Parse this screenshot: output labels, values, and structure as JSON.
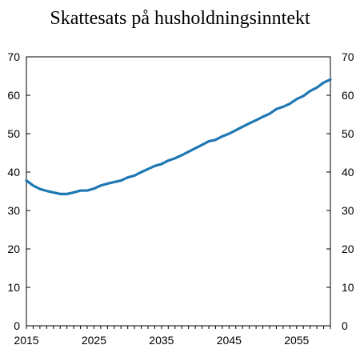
{
  "chart_data": {
    "type": "line",
    "title": "Skattesats på husholdningsinntekt",
    "xlabel": "",
    "ylabel": "",
    "xlim": [
      2015,
      2060
    ],
    "ylim": [
      0,
      70
    ],
    "x_ticks": [
      "2015",
      "2025",
      "2035",
      "2045",
      "2055"
    ],
    "y_ticks_left": [
      "0",
      "10",
      "20",
      "30",
      "40",
      "50",
      "60",
      "70"
    ],
    "y_ticks_right": [
      "0",
      "10",
      "20",
      "30",
      "40",
      "50",
      "60",
      "70"
    ],
    "grid": false,
    "color": "#1f77b4",
    "series": [
      {
        "x": [
          2015,
          2016,
          2017,
          2018,
          2019,
          2020,
          2021,
          2022,
          2023,
          2024,
          2025,
          2026,
          2027,
          2028,
          2029,
          2030,
          2031,
          2032,
          2033,
          2034,
          2035,
          2036,
          2037,
          2038,
          2039,
          2040,
          2041,
          2042,
          2043,
          2044,
          2045,
          2046,
          2047,
          2048,
          2049,
          2050,
          2051,
          2052,
          2053,
          2054,
          2055,
          2056,
          2057,
          2058,
          2059,
          2060
        ],
        "y": [
          37.8,
          36.5,
          35.6,
          35.1,
          34.7,
          34.3,
          34.3,
          34.7,
          35.2,
          35.2,
          35.7,
          36.5,
          37.0,
          37.4,
          37.8,
          38.6,
          39.1,
          40.0,
          40.8,
          41.6,
          42.1,
          43.0,
          43.6,
          44.4,
          45.3,
          46.2,
          47.1,
          48.0,
          48.4,
          49.3,
          50.0,
          50.9,
          51.8,
          52.7,
          53.5,
          54.4,
          55.2,
          56.4,
          57.0,
          57.8,
          59.0,
          59.8,
          61.1,
          62.0,
          63.3,
          64.1
        ]
      }
    ]
  }
}
